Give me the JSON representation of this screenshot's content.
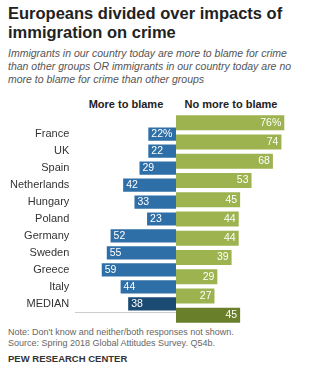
{
  "chart_data": {
    "type": "bar",
    "orientation": "horizontal",
    "title": "Europeans divided over impacts of immigration on crime",
    "subtitle": "Immigrants in our country today are more to blame for crime than other groups OR immigrants in our country today are no more to blame for crime than other groups",
    "annotations": [
      "Note: Don't know and neither/both responses not shown.",
      "Source: Spring 2018 Global Attitudes Survey. Q54b.",
      "PEW RESEARCH CENTER"
    ],
    "categories": [
      "France",
      "UK",
      "Spain",
      "Netherlands",
      "Hungary",
      "Poland",
      "Germany",
      "Sweden",
      "Greece",
      "Italy",
      "MEDIAN"
    ],
    "series": [
      {
        "name": "More to blame",
        "values": [
          22,
          22,
          29,
          42,
          33,
          23,
          52,
          55,
          59,
          44,
          38
        ],
        "value_labels": [
          "22%",
          "22",
          "29",
          "42",
          "33",
          "23",
          "52",
          "55",
          "59",
          "44",
          "38"
        ],
        "colors": [
          "#2e6fa7",
          "#2e6fa7",
          "#2e6fa7",
          "#2e6fa7",
          "#2e6fa7",
          "#2e6fa7",
          "#2e6fa7",
          "#2e6fa7",
          "#2e6fa7",
          "#2e6fa7",
          "#1b4a73"
        ]
      },
      {
        "name": "No more to blame",
        "values": [
          76,
          74,
          68,
          53,
          45,
          44,
          44,
          39,
          29,
          27,
          45
        ],
        "value_labels": [
          "76%",
          "74",
          "68",
          "53",
          "45",
          "44",
          "44",
          "39",
          "29",
          "27",
          "45"
        ],
        "colors": [
          "#9db34f",
          "#9db34f",
          "#9db34f",
          "#9db34f",
          "#9db34f",
          "#9db34f",
          "#9db34f",
          "#9db34f",
          "#9db34f",
          "#9db34f",
          "#6a7f2a"
        ]
      }
    ],
    "xlim": [
      0,
      80
    ],
    "grid": false,
    "legend": false,
    "data_labels": true,
    "tick_labels": "y"
  }
}
